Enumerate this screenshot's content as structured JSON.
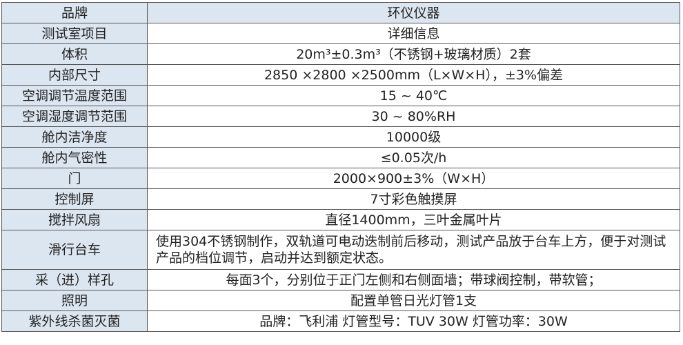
{
  "table": {
    "header": [
      "品牌",
      "环仪仪器"
    ],
    "rows": [
      [
        "测试室项目",
        "详细信息"
      ],
      [
        "体积",
        "20m³±0.3m³（不锈钢+玻璃材质）2套"
      ],
      [
        "内部尺寸",
        "2850 ×2800 ×2500mm（L×W×H），±3%偏差"
      ],
      [
        "空调调节温度范围",
        "15 ~ 40℃"
      ],
      [
        "空调湿度调节范围",
        "30 ~ 80%RH"
      ],
      [
        "舱内洁净度",
        "10000级"
      ],
      [
        "舱内气密性",
        "≤0.05次/h"
      ],
      [
        "门",
        "2000×900±3%（W×H）"
      ],
      [
        "控制屏",
        "7寸彩色触摸屏"
      ],
      [
        "搅拌风扇",
        "直径1400mm，三叶金属叶片"
      ],
      [
        "滑行台车",
        "使用304不锈钢制作，双轨道可电动迭制前后移动，测试产品放于台车上方，便于对测试产品的档位调节，启动并达到额定状态。"
      ],
      [
        "采（进）样孔",
        "每面3个，分别位于正门左侧和右侧面墙；带球阀控制，带软管；"
      ],
      [
        "照明",
        "配置单管日光灯管1支"
      ],
      [
        "紫外线杀菌灭菌",
        "品牌：飞利浦 灯管型号：TUV 30W 灯管功率：30W"
      ]
    ]
  }
}
